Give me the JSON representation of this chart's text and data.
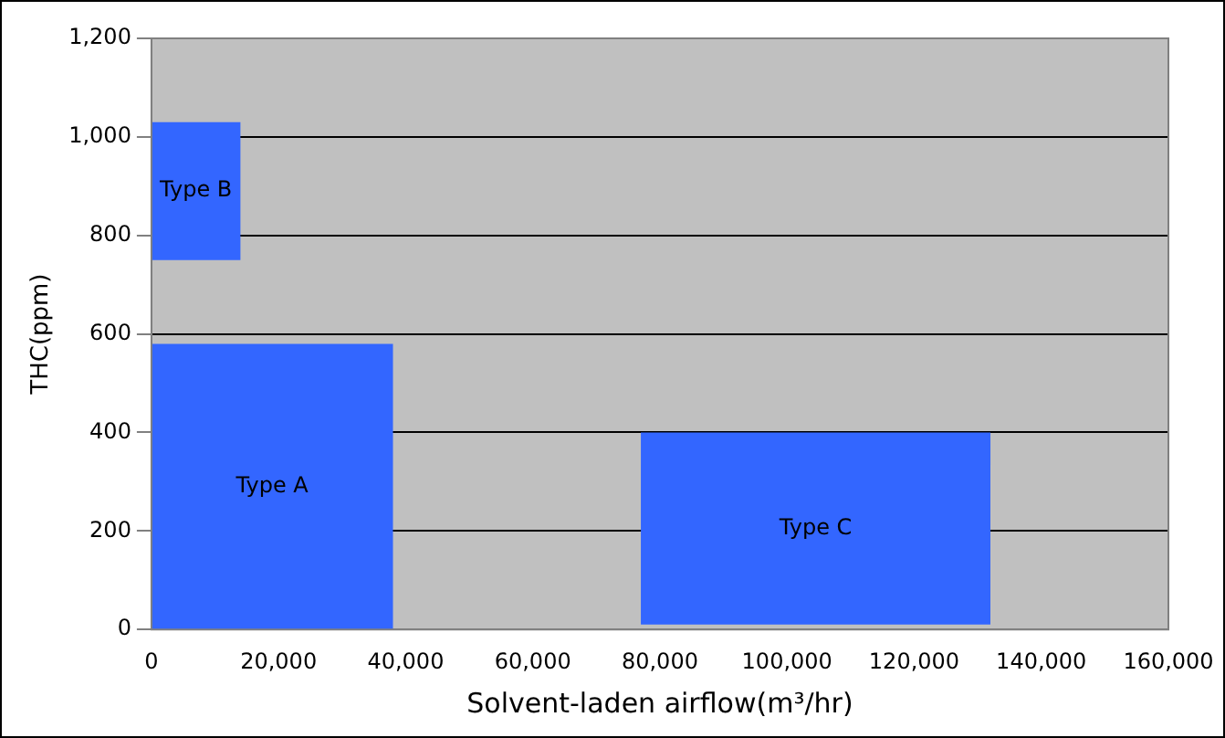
{
  "chart_data": {
    "type": "area",
    "xlabel": "Solvent-laden airflow(m³/hr)",
    "ylabel": "THC(ppm)",
    "xlim": [
      0,
      160000
    ],
    "xticks": [
      {
        "value": 0,
        "label": "0"
      },
      {
        "value": 20000,
        "label": "20,000"
      },
      {
        "value": 40000,
        "label": "40,000"
      },
      {
        "value": 60000,
        "label": "60,000"
      },
      {
        "value": 80000,
        "label": "80,000"
      },
      {
        "value": 100000,
        "label": "100,000"
      },
      {
        "value": 120000,
        "label": "120,000"
      },
      {
        "value": 140000,
        "label": "140,000"
      },
      {
        "value": 160000,
        "label": "160,000"
      }
    ],
    "ylim": [
      0,
      1200
    ],
    "yticks": [
      {
        "value": 0,
        "label": "0"
      },
      {
        "value": 200,
        "label": "200"
      },
      {
        "value": 400,
        "label": "400"
      },
      {
        "value": 600,
        "label": "600"
      },
      {
        "value": 800,
        "label": "800"
      },
      {
        "value": 1000,
        "label": "1,000"
      },
      {
        "value": 1200,
        "label": "1,200"
      }
    ],
    "grid": "y",
    "legend": false,
    "marker": "none",
    "series": [
      {
        "name": "Type B",
        "color": "#3366ff",
        "x": [
          0,
          0,
          14000,
          14000,
          0
        ],
        "values": [
          750,
          1030,
          1030,
          750,
          750
        ]
      },
      {
        "name": "Type A",
        "color": "#3366ff",
        "x": [
          0,
          0,
          38000,
          38000,
          0
        ],
        "values": [
          0,
          580,
          580,
          0,
          0
        ]
      },
      {
        "name": "Type C",
        "color": "#3366ff",
        "x": [
          77000,
          77000,
          132000,
          132000,
          77000
        ],
        "values": [
          10,
          400,
          400,
          10,
          10
        ]
      }
    ]
  }
}
